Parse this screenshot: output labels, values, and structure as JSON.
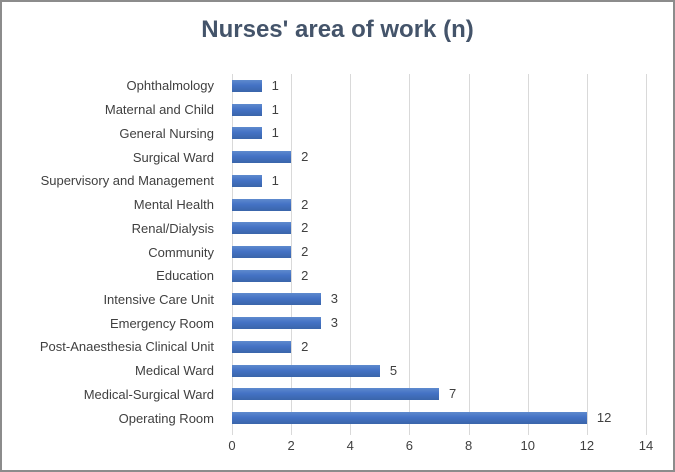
{
  "chart_data": {
    "type": "bar",
    "orientation": "horizontal",
    "title": "Nurses' area of work (n)",
    "categories": [
      "Ophthalmology",
      "Maternal and Child",
      "General Nursing",
      "Surgical Ward",
      "Supervisory and Management",
      "Mental Health",
      "Renal/Dialysis",
      "Community",
      "Education",
      "Intensive Care Unit",
      "Emergency Room",
      "Post-Anaesthesia Clinical Unit",
      "Medical Ward",
      "Medical-Surgical Ward",
      "Operating Room"
    ],
    "values": [
      1,
      1,
      1,
      2,
      1,
      2,
      2,
      2,
      2,
      3,
      3,
      2,
      5,
      7,
      12
    ],
    "data_labels": [
      "1",
      "1",
      "1",
      "2",
      "1",
      "2",
      "2",
      "2",
      "2",
      "3",
      "3",
      "2",
      "5",
      "7",
      "12"
    ],
    "xlim": [
      0,
      14
    ],
    "x_ticks": [
      "0",
      "2",
      "4",
      "6",
      "8",
      "10",
      "12",
      "14"
    ],
    "grid": true,
    "legend": "none",
    "colors": {
      "bar_fill": "#4472c4",
      "bar_fill_light": "#5e8ace",
      "bar_fill_dark": "#3a65aa",
      "title_text": "#44546a",
      "axis_text": "#404040",
      "gridline": "#d9d9d9",
      "frame_border": "#8c8c8c",
      "background": "#ffffff"
    }
  }
}
